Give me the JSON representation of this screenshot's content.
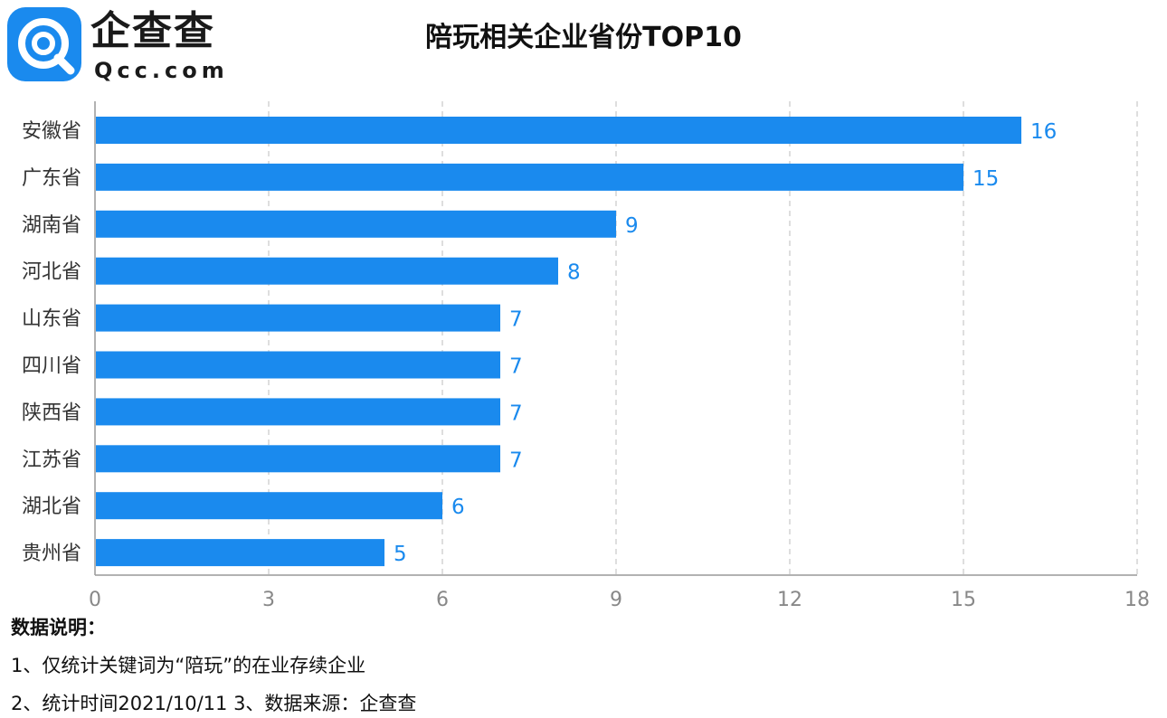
{
  "logo": {
    "name": "企查查",
    "domain": "Qcc.com"
  },
  "title": "陪玩相关企业省份TOP10",
  "chart_data": {
    "type": "bar",
    "orientation": "horizontal",
    "categories": [
      "安徽省",
      "广东省",
      "湖南省",
      "河北省",
      "山东省",
      "四川省",
      "陕西省",
      "江苏省",
      "湖北省",
      "贵州省"
    ],
    "values": [
      16,
      15,
      9,
      8,
      7,
      7,
      7,
      7,
      6,
      5
    ],
    "xlim": [
      0,
      18
    ],
    "xticks": [
      0,
      3,
      6,
      9,
      12,
      15,
      18
    ],
    "grid": "vertical-dashed",
    "data_labels": true,
    "colors": {
      "bar": "#1a8aee",
      "label": "#1a8aee",
      "tick": "#888888",
      "grid": "#c8c8c8"
    }
  },
  "notes": {
    "heading": "数据说明：",
    "line1": "1、仅统计关键词为“陪玩”的在业存续企业",
    "line2": "2、统计时间2021/10/11    3、数据来源：企查查"
  }
}
